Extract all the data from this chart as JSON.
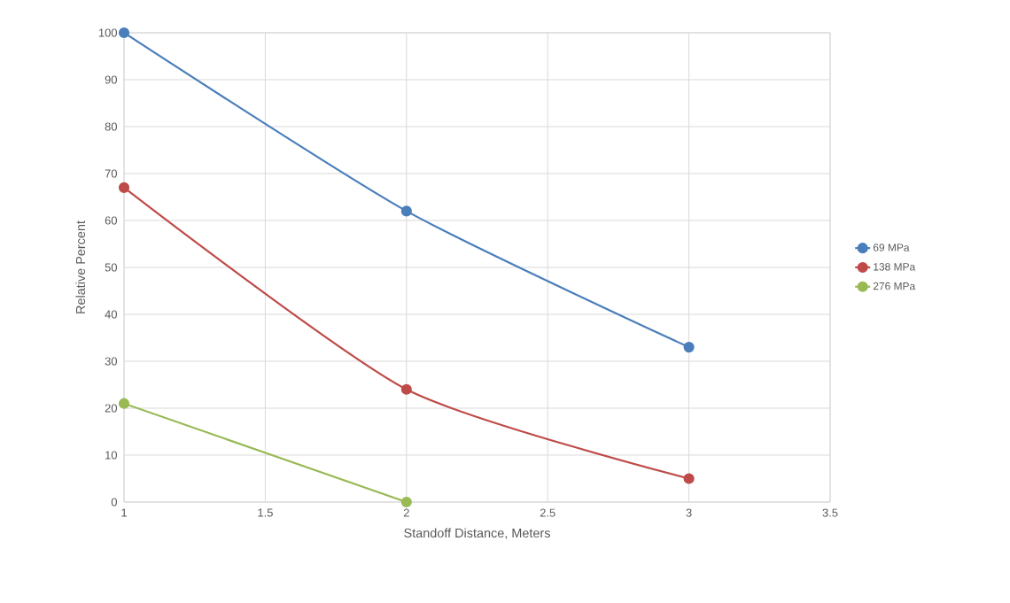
{
  "chart_data": {
    "type": "line",
    "xlabel": "Standoff Distance, Meters",
    "ylabel": "Relative Percent",
    "x": [
      1,
      2,
      3
    ],
    "series": [
      {
        "name": "69 MPa",
        "color": "#4a7ebb",
        "values": [
          100,
          62,
          33
        ]
      },
      {
        "name": "138 MPa",
        "color": "#be4b48",
        "values": [
          67,
          24,
          5
        ]
      },
      {
        "name": "276 MPa",
        "color": "#98b954",
        "values": [
          21,
          0,
          null
        ]
      }
    ],
    "xlim": [
      1,
      3.5
    ],
    "xticks": [
      1,
      1.5,
      2,
      2.5,
      3,
      3.5
    ],
    "ylim": [
      0,
      100
    ],
    "yticks": [
      0,
      10,
      20,
      30,
      40,
      50,
      60,
      70,
      80,
      90,
      100
    ],
    "grid": true,
    "legend": "right",
    "marker": "circle",
    "line_style": "solid"
  }
}
